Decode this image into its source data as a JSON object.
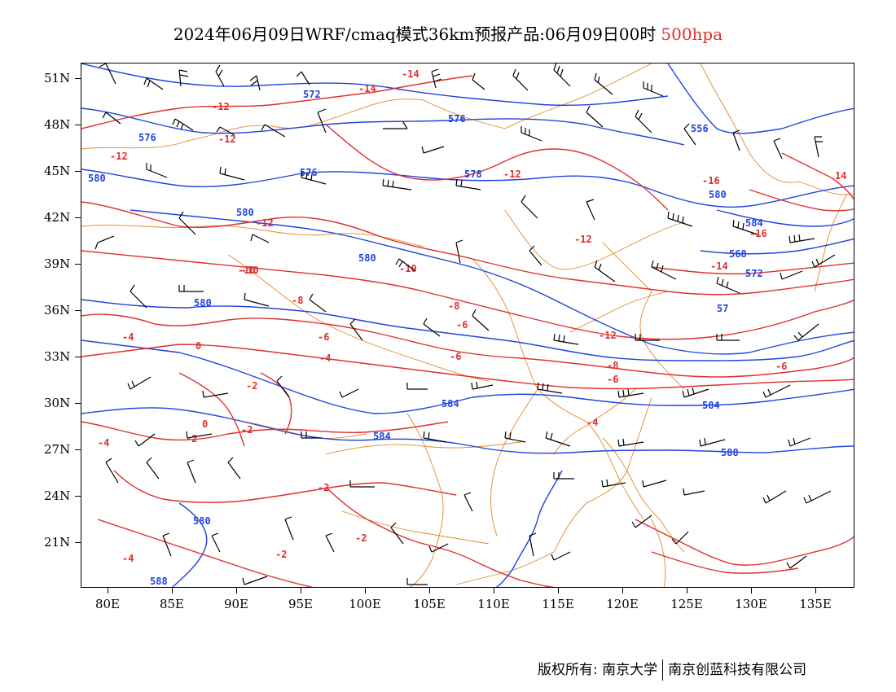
{
  "title": {
    "main": "2024年06月09日WRF/cmaq模式36km预报产品:06月09日00时",
    "level": "500hpa"
  },
  "colors": {
    "height_contour": "#2244dd",
    "temperature_contour": "#e03030",
    "boundary": "#e08a2a",
    "wind_barb": "#000000"
  },
  "axes": {
    "lat_labels": [
      "51N",
      "48N",
      "45N",
      "42N",
      "39N",
      "36N",
      "33N",
      "30N",
      "27N",
      "24N",
      "21N"
    ],
    "lon_labels": [
      "80E",
      "85E",
      "90E",
      "95E",
      "100E",
      "105E",
      "110E",
      "115E",
      "120E",
      "125E",
      "130E",
      "135E"
    ]
  },
  "height_labels": [
    "572",
    "576",
    "580",
    "576",
    "578",
    "576",
    "580",
    "556",
    "568",
    "584",
    "572",
    "57",
    "580",
    "580",
    "580",
    "584",
    "584",
    "584",
    "588",
    "580",
    "588"
  ],
  "temperature_labels": [
    "-14",
    "-14",
    "-12",
    "-12",
    "-12",
    "-12",
    "-16",
    "-16",
    "-14",
    "-12",
    "-10",
    "-10",
    "-8",
    "-8",
    "-6",
    "-6",
    "-4",
    "-4",
    "-6",
    "-6",
    "-12",
    "-8",
    "-6",
    "-4",
    "-2",
    "-2",
    "-2",
    "-4",
    "-4",
    "-2",
    "-2",
    "-2",
    "-10",
    "0",
    "0",
    "14",
    "-12"
  ],
  "footer": {
    "left": "版权所有: 南京大学",
    "right": "南京创蓝科技有限公司"
  }
}
